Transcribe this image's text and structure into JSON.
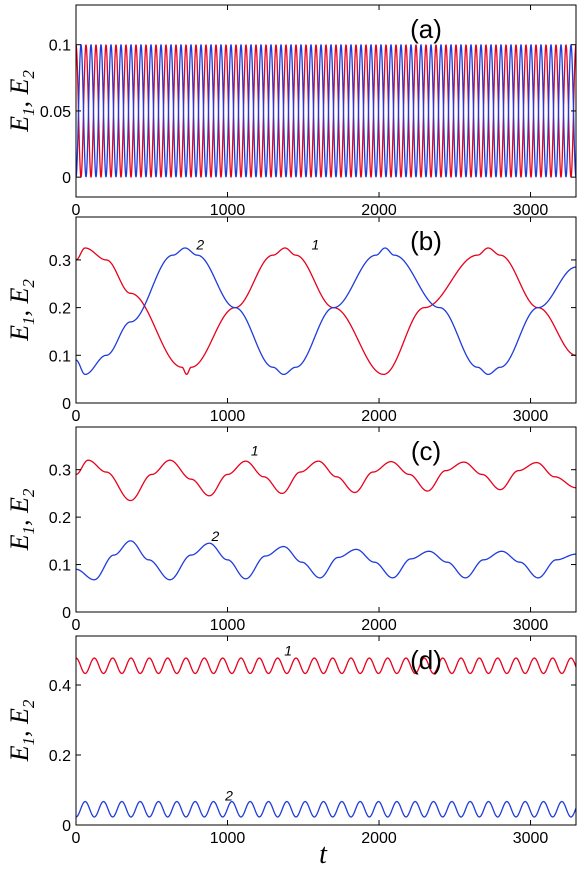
{
  "chart_data": [
    {
      "type": "line",
      "panel_label": "(a)",
      "xlim": [
        0,
        3300
      ],
      "ylim": [
        -0.015,
        0.13
      ],
      "xticks": [
        "0",
        "1000",
        "2000",
        "3000"
      ],
      "xtick_values": [
        0,
        1000,
        2000,
        3000
      ],
      "yticks": [
        "0",
        "0.05",
        "0.1"
      ],
      "ytick_values": [
        0,
        0.05,
        0.1
      ],
      "ylabel": {
        "E1": "E",
        "s1": "1",
        "sep": ",",
        "E2": "E",
        "s2": "2"
      },
      "xlabel": "",
      "series": [
        {
          "color": "#e8001c",
          "mean": 0.05,
          "amplitude": 0.05,
          "period": 66,
          "phase": 0,
          "cosine": true
        },
        {
          "color": "#1f3bdc",
          "mean": 0.05,
          "amplitude": -0.05,
          "period": 66,
          "phase": 0,
          "cosine": true
        }
      ],
      "curve_labels": []
    },
    {
      "type": "line",
      "panel_label": "(b)",
      "xlim": [
        0,
        3300
      ],
      "ylim": [
        0,
        0.39
      ],
      "xticks": [
        "0",
        "1000",
        "2000",
        "3000"
      ],
      "xtick_values": [
        0,
        1000,
        2000,
        3000
      ],
      "yticks": [
        "0",
        "0.1",
        "0.2",
        "0.3"
      ],
      "ytick_values": [
        0,
        0.1,
        0.2,
        0.3
      ],
      "ylabel": {
        "E1": "E",
        "s1": "1",
        "sep": ",",
        "E2": "E",
        "s2": "2"
      },
      "xlabel": "",
      "series": [
        {
          "color": "#e8001c",
          "points": [
            [
              0,
              0.3
            ],
            [
              60,
              0.325
            ],
            [
              200,
              0.3
            ],
            [
              360,
              0.23
            ],
            [
              700,
              0.075
            ],
            [
              730,
              0.06
            ],
            [
              760,
              0.075
            ],
            [
              1050,
              0.2
            ],
            [
              1300,
              0.31
            ],
            [
              1380,
              0.325
            ],
            [
              1450,
              0.31
            ],
            [
              1700,
              0.2
            ],
            [
              2030,
              0.06
            ],
            [
              2300,
              0.2
            ],
            [
              2650,
              0.31
            ],
            [
              2720,
              0.325
            ],
            [
              2800,
              0.31
            ],
            [
              3050,
              0.2
            ],
            [
              3300,
              0.1
            ]
          ]
        },
        {
          "color": "#1f3bdc",
          "points": [
            [
              0,
              0.09
            ],
            [
              60,
              0.06
            ],
            [
              200,
              0.1
            ],
            [
              360,
              0.17
            ],
            [
              640,
              0.31
            ],
            [
              720,
              0.325
            ],
            [
              800,
              0.31
            ],
            [
              1050,
              0.2
            ],
            [
              1300,
              0.075
            ],
            [
              1370,
              0.06
            ],
            [
              1450,
              0.075
            ],
            [
              1700,
              0.2
            ],
            [
              1980,
              0.31
            ],
            [
              2040,
              0.325
            ],
            [
              2100,
              0.31
            ],
            [
              2400,
              0.2
            ],
            [
              2650,
              0.075
            ],
            [
              2720,
              0.06
            ],
            [
              2800,
              0.075
            ],
            [
              3050,
              0.2
            ],
            [
              3300,
              0.285
            ]
          ]
        }
      ],
      "curve_labels": [
        {
          "text": "2",
          "x": 820,
          "y": 0.322
        },
        {
          "text": "1",
          "x": 1580,
          "y": 0.322
        }
      ]
    },
    {
      "type": "line",
      "panel_label": "(c)",
      "xlim": [
        0,
        3300
      ],
      "ylim": [
        0,
        0.39
      ],
      "xticks": [
        "0",
        "1000",
        "2000",
        "3000"
      ],
      "xtick_values": [
        0,
        1000,
        2000,
        3000
      ],
      "yticks": [
        "0",
        "0.1",
        "0.2",
        "0.3"
      ],
      "ytick_values": [
        0,
        0.1,
        0.2,
        0.3
      ],
      "ylabel": {
        "E1": "E",
        "s1": "1",
        "sep": ",",
        "E2": "E",
        "s2": "2"
      },
      "xlabel": "",
      "series": [
        {
          "color": "#e8001c",
          "points": [
            [
              0,
              0.29
            ],
            [
              80,
              0.32
            ],
            [
              200,
              0.295
            ],
            [
              360,
              0.235
            ],
            [
              500,
              0.29
            ],
            [
              620,
              0.32
            ],
            [
              760,
              0.28
            ],
            [
              880,
              0.245
            ],
            [
              1000,
              0.29
            ],
            [
              1120,
              0.318
            ],
            [
              1240,
              0.285
            ],
            [
              1360,
              0.25
            ],
            [
              1480,
              0.295
            ],
            [
              1600,
              0.318
            ],
            [
              1720,
              0.285
            ],
            [
              1840,
              0.252
            ],
            [
              1960,
              0.295
            ],
            [
              2080,
              0.317
            ],
            [
              2200,
              0.29
            ],
            [
              2320,
              0.255
            ],
            [
              2440,
              0.298
            ],
            [
              2560,
              0.316
            ],
            [
              2680,
              0.29
            ],
            [
              2800,
              0.258
            ],
            [
              2920,
              0.298
            ],
            [
              3040,
              0.315
            ],
            [
              3160,
              0.285
            ],
            [
              3300,
              0.262
            ]
          ]
        },
        {
          "color": "#1f3bdc",
          "points": [
            [
              0,
              0.09
            ],
            [
              120,
              0.068
            ],
            [
              250,
              0.12
            ],
            [
              360,
              0.15
            ],
            [
              480,
              0.11
            ],
            [
              620,
              0.068
            ],
            [
              760,
              0.12
            ],
            [
              880,
              0.145
            ],
            [
              1000,
              0.11
            ],
            [
              1120,
              0.07
            ],
            [
              1250,
              0.118
            ],
            [
              1370,
              0.138
            ],
            [
              1490,
              0.105
            ],
            [
              1610,
              0.072
            ],
            [
              1730,
              0.115
            ],
            [
              1850,
              0.132
            ],
            [
              1970,
              0.105
            ],
            [
              2090,
              0.072
            ],
            [
              2210,
              0.112
            ],
            [
              2330,
              0.128
            ],
            [
              2450,
              0.105
            ],
            [
              2570,
              0.072
            ],
            [
              2690,
              0.11
            ],
            [
              2810,
              0.128
            ],
            [
              2930,
              0.105
            ],
            [
              3050,
              0.072
            ],
            [
              3170,
              0.11
            ],
            [
              3300,
              0.122
            ]
          ]
        }
      ],
      "curve_labels": [
        {
          "text": "1",
          "x": 1180,
          "y": 0.33
        },
        {
          "text": "2",
          "x": 920,
          "y": 0.15
        }
      ]
    },
    {
      "type": "line",
      "panel_label": "(d)",
      "xlim": [
        0,
        3300
      ],
      "ylim": [
        0,
        0.54
      ],
      "xticks": [
        "0",
        "1000",
        "2000",
        "3000"
      ],
      "xtick_values": [
        0,
        1000,
        2000,
        3000
      ],
      "yticks": [
        "0",
        "0.2",
        "0.4"
      ],
      "ytick_values": [
        0,
        0.2,
        0.4
      ],
      "ylabel": {
        "E1": "E",
        "s1": "1",
        "sep": ",",
        "E2": "E",
        "s2": "2"
      },
      "xlabel": "t",
      "series": [
        {
          "color": "#e8001c",
          "mean": 0.455,
          "amplitude": 0.022,
          "period": 121,
          "phase": 0,
          "cosine": true
        },
        {
          "color": "#1f3bdc",
          "mean": 0.045,
          "amplitude": -0.022,
          "period": 121,
          "phase": 0,
          "cosine": true
        }
      ],
      "curve_labels": [
        {
          "text": "1",
          "x": 1400,
          "y": 0.485
        },
        {
          "text": "2",
          "x": 1010,
          "y": 0.07
        }
      ]
    }
  ]
}
